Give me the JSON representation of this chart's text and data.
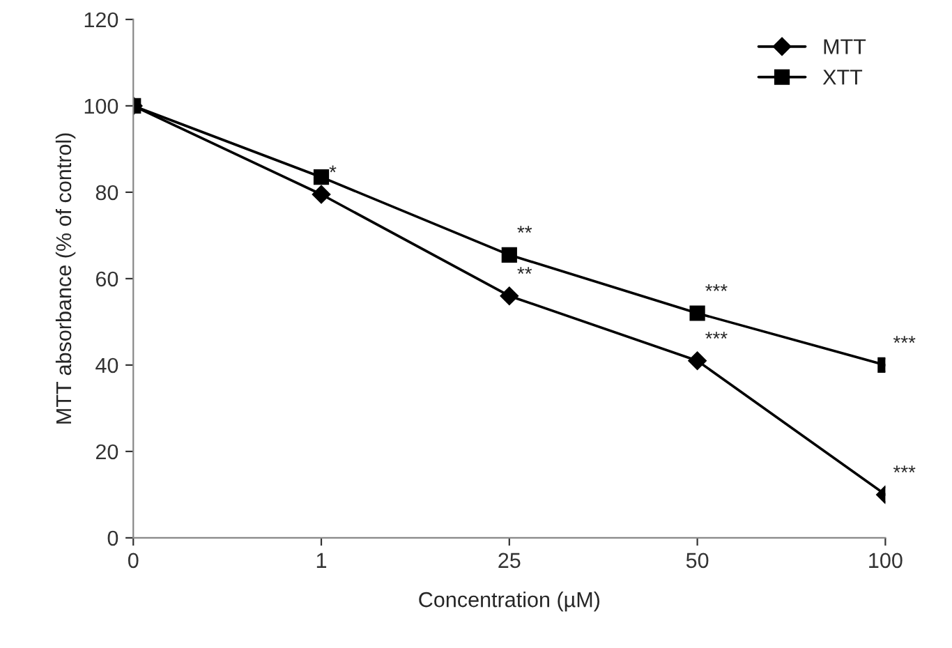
{
  "chart_data": {
    "type": "line",
    "xlabel": "Concentration (µM)",
    "ylabel": "MTT absorbance (% of control)",
    "categories": [
      "0",
      "1",
      "25",
      "50",
      "100"
    ],
    "series": [
      {
        "name": "MTT",
        "color": "#000000",
        "marker": "diamond",
        "values": [
          100,
          79.5,
          56,
          41,
          10
        ]
      },
      {
        "name": "XTT",
        "color": "#000000",
        "marker": "square",
        "values": [
          100,
          83.5,
          65.5,
          52,
          40
        ]
      }
    ],
    "ylim": [
      0,
      120
    ],
    "yticks": [
      0,
      20,
      40,
      60,
      80,
      100,
      120
    ],
    "grid": false,
    "legend": "top right",
    "line_style": "solid",
    "annotations": [
      {
        "text": "*",
        "x": "1",
        "y": 79.5
      },
      {
        "text": "**",
        "x": "25",
        "y": 65.5
      },
      {
        "text": "**",
        "x": "25",
        "y": 56
      },
      {
        "text": "***",
        "x": "50",
        "y": 52
      },
      {
        "text": "***",
        "x": "50",
        "y": 41
      },
      {
        "text": "***",
        "x": "100",
        "y": 40
      },
      {
        "text": "***",
        "x": "100",
        "y": 10
      }
    ]
  }
}
